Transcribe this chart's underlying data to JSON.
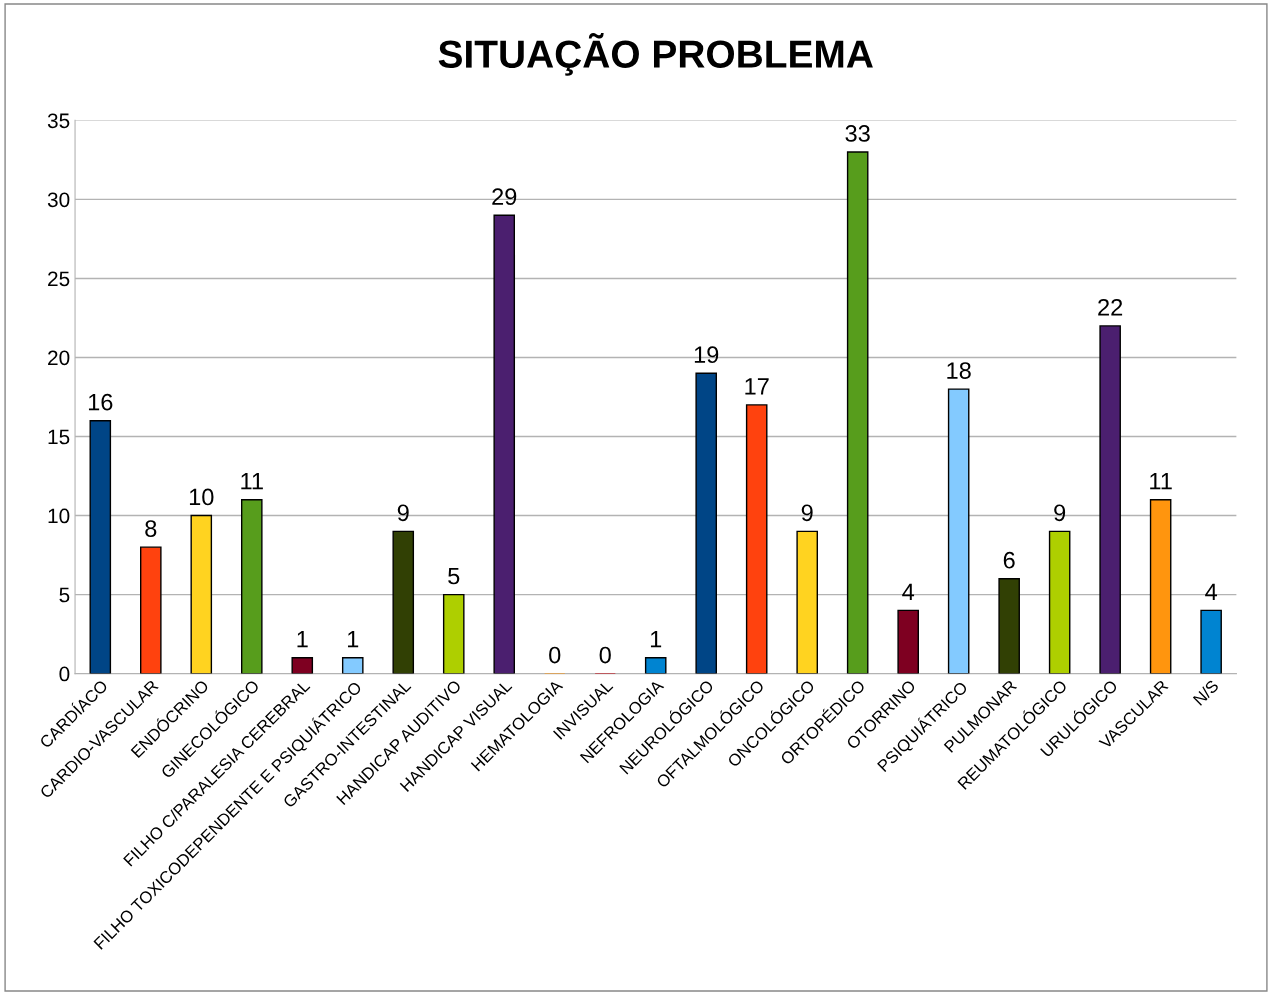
{
  "chart_data": {
    "type": "bar",
    "title": "SITUAÇÃO PROBLEMA",
    "categories": [
      "CARDÍACO",
      "CARDIO-VASCULAR",
      "ENDÓCRINO",
      "GINECOLÓGICO",
      "FILHO C/PARALESIA CEREBRAL",
      "FILHO TOXICODEPENDENTE E PSIQUIÁTRICO",
      "GASTRO-INTESTINAL",
      "HANDICAP AUDITIVO",
      "HANDICAP VISUAL",
      "HEMATOLOGIA",
      "INVISUAL",
      "NEFROLOGIA",
      "NEUROLÓGICO",
      "OFTALMOLÓGICO",
      "ONCOLÓGICO",
      "ORTOPÉDICO",
      "OTORRINO",
      "PSIQUIÁTRICO",
      "PULMONAR",
      "REUMATOLÓGICO",
      "URULÓGICO",
      "VASCULAR",
      "N/S"
    ],
    "values": [
      16,
      8,
      10,
      11,
      1,
      1,
      9,
      5,
      29,
      0,
      0,
      1,
      19,
      17,
      9,
      33,
      4,
      18,
      6,
      9,
      22,
      11,
      4
    ],
    "colors": [
      "#004586",
      "#ff420e",
      "#ffd320",
      "#579d1c",
      "#7e0021",
      "#83caff",
      "#314004",
      "#aecf00",
      "#4b1f6f",
      "#ff950e",
      "#c5000b",
      "#0084d1",
      "#004586",
      "#ff420e",
      "#ffd320",
      "#579d1c",
      "#7e0021",
      "#83caff",
      "#314004",
      "#aecf00",
      "#4b1f6f",
      "#ff950e",
      "#0084d1"
    ],
    "ylim": [
      0,
      35
    ],
    "yticks": [
      0,
      5,
      10,
      15,
      20,
      25,
      30,
      35
    ],
    "grid": "y",
    "data_labels": true,
    "legend": false
  }
}
